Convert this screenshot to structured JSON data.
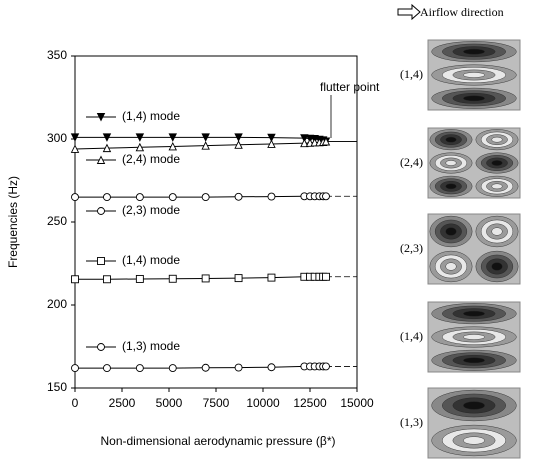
{
  "chart_data": {
    "type": "line",
    "ylabel": "Frequencies (Hz)",
    "xlabel": "Non-dimensional aerodynamic pressure (β*)",
    "annotation": "flutter point",
    "x": [
      0,
      1700,
      3450,
      5200,
      6950,
      8700,
      10450,
      12200,
      12500,
      12750,
      13000,
      13200,
      13350
    ],
    "series": [
      {
        "name": "(1,4) mode",
        "color": "#000000",
        "marker": "triangle-down",
        "filled": true,
        "values": [
          301,
          301,
          301,
          301,
          301,
          301,
          300.8,
          300.5,
          300.2,
          300,
          299.6,
          299.2,
          298.5
        ]
      },
      {
        "name": "(2,4) mode",
        "color": "#000000",
        "marker": "triangle-up",
        "filled": false,
        "values": [
          294,
          294.5,
          295,
          295.5,
          296,
          296.5,
          297,
          297.5,
          297.7,
          297.9,
          298,
          298.2,
          298.5
        ]
      },
      {
        "name": "(2,3) mode",
        "color": "#000000",
        "marker": "circle",
        "filled": false,
        "values": [
          265,
          265,
          265,
          265,
          265,
          265.2,
          265.3,
          265.5,
          265.5,
          265.5,
          265.5,
          265.5,
          265.5
        ]
      },
      {
        "name": "(1,4) mode",
        "color": "#000000",
        "marker": "square",
        "filled": false,
        "values": [
          215.5,
          215.5,
          215.7,
          215.8,
          216,
          216.2,
          216.5,
          217,
          217,
          217,
          217,
          217,
          217
        ]
      },
      {
        "name": "(1,3) mode",
        "color": "#000000",
        "marker": "circle",
        "filled": false,
        "values": [
          162,
          162,
          162,
          162,
          162.2,
          162.3,
          162.5,
          163,
          163,
          163,
          163,
          163,
          163
        ]
      }
    ],
    "xlim": [
      0,
      15000
    ],
    "xticks": [
      0,
      2500,
      5000,
      7500,
      10000,
      12500,
      15000
    ],
    "ylim": [
      150,
      350
    ],
    "yticks": [
      150,
      200,
      250,
      300,
      350
    ],
    "grid": false,
    "side_panel": {
      "title": "Airflow direction",
      "mode_shapes": [
        "(1,4)",
        "(2,4)",
        "(2,3)",
        "(1,4)",
        "(1,3)"
      ]
    }
  }
}
